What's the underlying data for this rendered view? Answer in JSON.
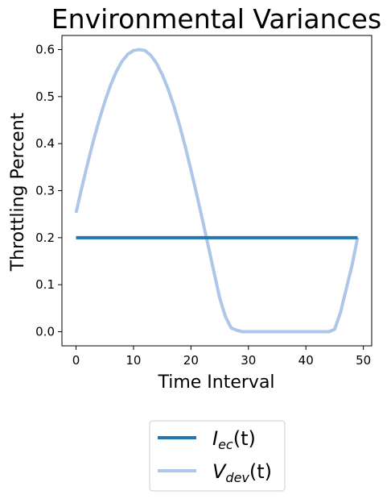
{
  "chart_data": {
    "type": "line",
    "title": "Environmental Variances",
    "xlabel": "Time Interval",
    "ylabel": "Throttling Percent",
    "xlim": [
      -2.45,
      51.45
    ],
    "ylim": [
      -0.03,
      0.63
    ],
    "xticks": [
      0,
      10,
      20,
      30,
      40,
      50
    ],
    "yticks": [
      0.0,
      0.1,
      0.2,
      0.3,
      0.4,
      0.5,
      0.6
    ],
    "ytick_labels": [
      "0.0",
      "0.1",
      "0.2",
      "0.3",
      "0.4",
      "0.5",
      "0.6"
    ],
    "grid": false,
    "legend_position": "below",
    "series": [
      {
        "name": "I_ec(t)",
        "color": "#1f77b4",
        "x": [
          0,
          49
        ],
        "y": [
          0.2,
          0.2
        ]
      },
      {
        "name": "V_dev(t)",
        "color": "#aec7e8",
        "x": [
          0,
          1,
          2,
          3,
          4,
          5,
          6,
          7,
          8,
          9,
          10,
          11,
          12,
          13,
          14,
          15,
          16,
          17,
          18,
          19,
          20,
          21,
          22,
          23,
          24,
          25,
          26,
          27,
          28,
          29,
          30,
          31,
          32,
          33,
          34,
          35,
          36,
          37,
          38,
          39,
          40,
          41,
          42,
          43,
          44,
          45,
          46,
          47,
          48,
          49
        ],
        "y": [
          0.253,
          0.306,
          0.357,
          0.405,
          0.449,
          0.489,
          0.524,
          0.553,
          0.575,
          0.59,
          0.598,
          0.6,
          0.598,
          0.588,
          0.571,
          0.547,
          0.517,
          0.481,
          0.44,
          0.394,
          0.344,
          0.292,
          0.238,
          0.183,
          0.127,
          0.072,
          0.032,
          0.008,
          0.003,
          0.0,
          0.0,
          0.0,
          0.0,
          0.0,
          0.0,
          0.0,
          0.0,
          0.0,
          0.0,
          0.0,
          0.0,
          0.0,
          0.0,
          0.0,
          0.0,
          0.005,
          0.04,
          0.09,
          0.14,
          0.2
        ]
      }
    ],
    "legend": [
      {
        "base": "I",
        "sub": "ec",
        "suffix": "(t)"
      },
      {
        "base": "V",
        "sub": "dev",
        "suffix": "(t)"
      }
    ]
  }
}
